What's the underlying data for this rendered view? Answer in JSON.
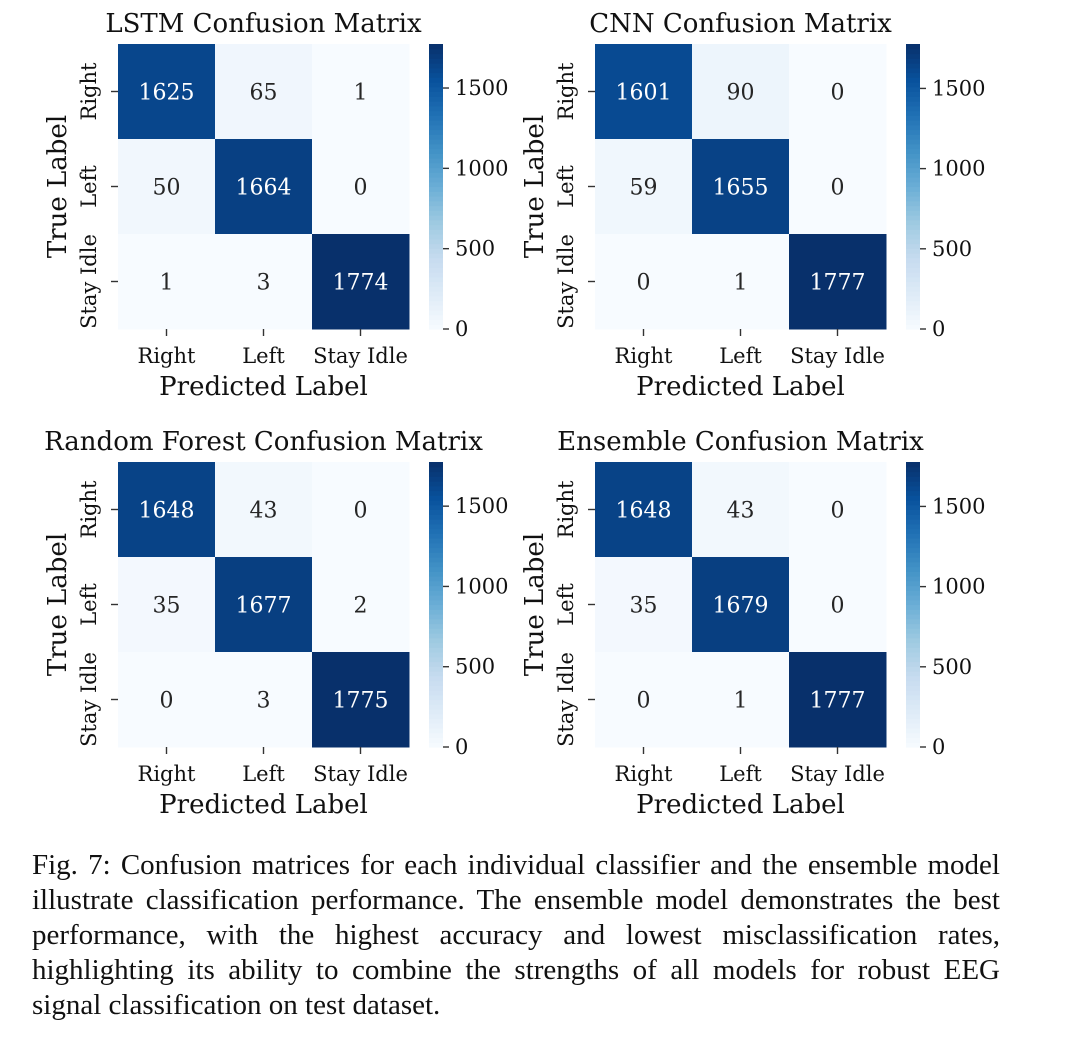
{
  "chart_data": [
    {
      "type": "heatmap",
      "title": "LSTM Confusion Matrix",
      "xlabel": "Predicted Label",
      "ylabel": "True Label",
      "x_categories": [
        "Right",
        "Left",
        "Stay Idle"
      ],
      "y_categories": [
        "Right",
        "Left",
        "Stay Idle"
      ],
      "values": [
        [
          1625,
          65,
          1
        ],
        [
          50,
          1664,
          0
        ],
        [
          1,
          3,
          1774
        ]
      ],
      "colorbar": {
        "min": 0,
        "max": 1774,
        "ticks": [
          0,
          500,
          1000,
          1500
        ],
        "colormap": "Blues"
      }
    },
    {
      "type": "heatmap",
      "title": "CNN Confusion Matrix",
      "xlabel": "Predicted Label",
      "ylabel": "True Label",
      "x_categories": [
        "Right",
        "Left",
        "Stay Idle"
      ],
      "y_categories": [
        "Right",
        "Left",
        "Stay Idle"
      ],
      "values": [
        [
          1601,
          90,
          0
        ],
        [
          59,
          1655,
          0
        ],
        [
          0,
          1,
          1777
        ]
      ],
      "colorbar": {
        "min": 0,
        "max": 1777,
        "ticks": [
          0,
          500,
          1000,
          1500
        ],
        "colormap": "Blues"
      }
    },
    {
      "type": "heatmap",
      "title": "Random Forest Confusion Matrix",
      "xlabel": "Predicted Label",
      "ylabel": "True Label",
      "x_categories": [
        "Right",
        "Left",
        "Stay Idle"
      ],
      "y_categories": [
        "Right",
        "Left",
        "Stay Idle"
      ],
      "values": [
        [
          1648,
          43,
          0
        ],
        [
          35,
          1677,
          2
        ],
        [
          0,
          3,
          1775
        ]
      ],
      "colorbar": {
        "min": 0,
        "max": 1775,
        "ticks": [
          0,
          500,
          1000,
          1500
        ],
        "colormap": "Blues"
      }
    },
    {
      "type": "heatmap",
      "title": "Ensemble Confusion Matrix",
      "xlabel": "Predicted Label",
      "ylabel": "True Label",
      "x_categories": [
        "Right",
        "Left",
        "Stay Idle"
      ],
      "y_categories": [
        "Right",
        "Left",
        "Stay Idle"
      ],
      "values": [
        [
          1648,
          43,
          0
        ],
        [
          35,
          1679,
          0
        ],
        [
          0,
          1,
          1777
        ]
      ],
      "colorbar": {
        "min": 0,
        "max": 1777,
        "ticks": [
          0,
          500,
          1000,
          1500
        ],
        "colormap": "Blues"
      }
    }
  ],
  "caption": "Fig. 7: Confusion matrices for each individual classifier and the ensemble model illustrate classification performance. The ensemble model demonstrates the best performance, with the highest accuracy and lowest misclassification rates, highlighting its ability to combine the strengths of all models for robust EEG signal classification on test dataset.",
  "colors": {
    "light": "#f7fbff",
    "dark": "#08306b"
  }
}
